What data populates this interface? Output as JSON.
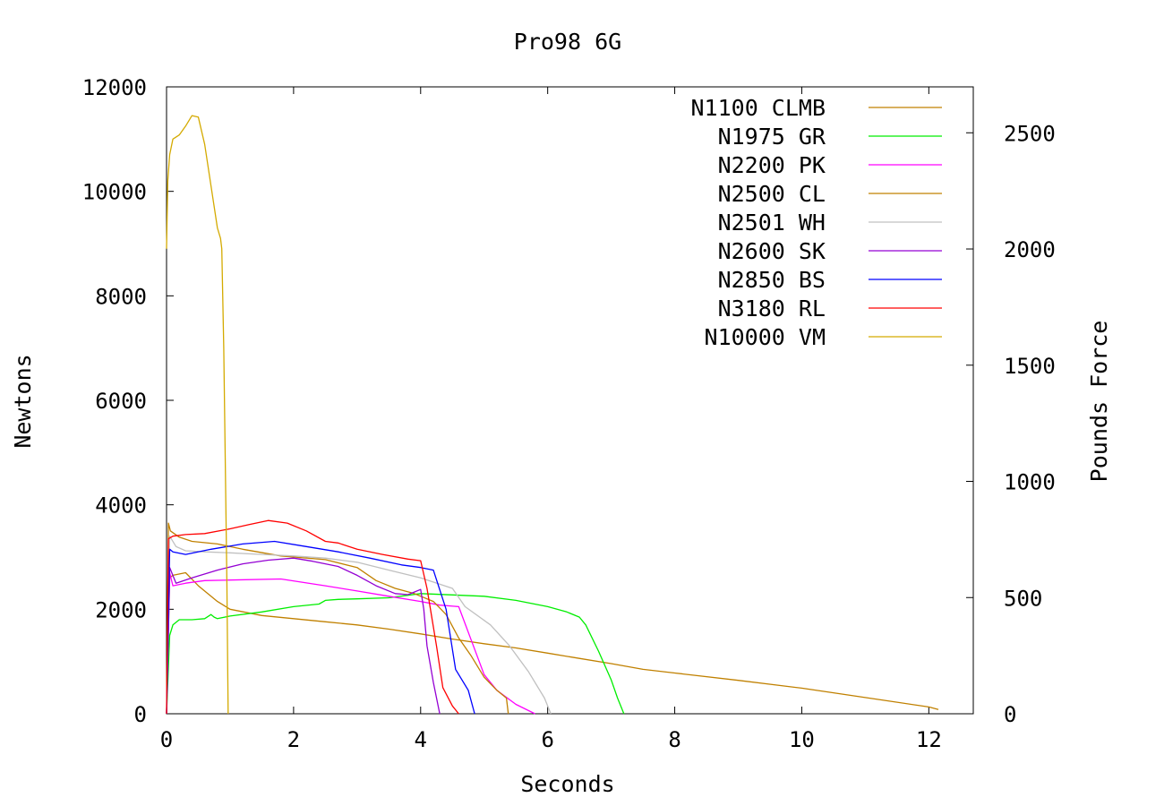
{
  "chart_data": {
    "type": "line",
    "title": "Pro98 6G",
    "xlabel": "Seconds",
    "ylabel": "Newtons",
    "y2label": "Pounds Force",
    "xlim": [
      0,
      12.7
    ],
    "ylim": [
      0,
      12000
    ],
    "y2lim": [
      0,
      2697.6
    ],
    "xticks": [
      0,
      2,
      4,
      6,
      8,
      10,
      12
    ],
    "yticks": [
      0,
      2000,
      4000,
      6000,
      8000,
      10000,
      12000
    ],
    "y2ticks": [
      0,
      500,
      1000,
      1500,
      2000,
      2500
    ],
    "grid": false,
    "legend_position": "top-right",
    "series": [
      {
        "name": "N1100 CLMB",
        "color": "#c08000",
        "x": [
          0,
          0.05,
          0.1,
          0.3,
          0.5,
          0.8,
          1.0,
          1.5,
          2.0,
          2.5,
          3.0,
          3.5,
          4.0,
          4.5,
          5.0,
          5.5,
          6.0,
          6.5,
          7.0,
          7.5,
          8.0,
          9.0,
          10.0,
          11.0,
          12.0,
          12.15
        ],
        "y": [
          0,
          2600,
          2650,
          2700,
          2450,
          2150,
          2000,
          1880,
          1820,
          1760,
          1700,
          1620,
          1530,
          1430,
          1340,
          1260,
          1160,
          1060,
          960,
          850,
          780,
          640,
          490,
          310,
          130,
          80
        ]
      },
      {
        "name": "N1975 GR",
        "color": "#00ee00",
        "x": [
          0,
          0.05,
          0.1,
          0.2,
          0.4,
          0.6,
          0.7,
          0.75,
          0.8,
          1.0,
          1.5,
          2.0,
          2.4,
          2.5,
          2.7,
          3.0,
          3.5,
          4.0,
          5.0,
          5.5,
          6.0,
          6.3,
          6.5,
          6.6,
          6.8,
          7.0,
          7.1,
          7.2
        ],
        "y": [
          0,
          1500,
          1700,
          1800,
          1800,
          1820,
          1900,
          1850,
          1820,
          1870,
          1950,
          2050,
          2100,
          2170,
          2190,
          2200,
          2220,
          2300,
          2250,
          2170,
          2050,
          1950,
          1850,
          1700,
          1200,
          650,
          300,
          0
        ]
      },
      {
        "name": "N2200 PK",
        "color": "#ff00ff",
        "x": [
          0,
          0.05,
          0.1,
          0.3,
          0.6,
          1.0,
          1.8,
          2.5,
          3.0,
          3.5,
          4.0,
          4.3,
          4.6,
          4.8,
          5.0,
          5.2,
          5.5,
          5.8
        ],
        "y": [
          0,
          2700,
          2450,
          2500,
          2550,
          2560,
          2580,
          2450,
          2350,
          2250,
          2150,
          2080,
          2050,
          1400,
          750,
          450,
          180,
          0
        ]
      },
      {
        "name": "N2500 CL",
        "color": "#c08000",
        "x": [
          0,
          0.03,
          0.06,
          0.2,
          0.4,
          0.8,
          1.2,
          1.8,
          2.5,
          3.0,
          3.3,
          3.6,
          3.9,
          4.2,
          4.4,
          4.6,
          4.8,
          5.0,
          5.2,
          5.35,
          5.38
        ],
        "y": [
          0,
          3650,
          3500,
          3380,
          3300,
          3250,
          3150,
          3020,
          2950,
          2800,
          2550,
          2400,
          2300,
          2150,
          1900,
          1450,
          1100,
          700,
          450,
          300,
          0
        ]
      },
      {
        "name": "N2501 WH",
        "color": "#c0c0c0",
        "x": [
          0,
          0.05,
          0.15,
          0.3,
          0.6,
          1.0,
          1.5,
          2.0,
          2.5,
          3.0,
          3.5,
          4.0,
          4.5,
          4.7,
          5.1,
          5.4,
          5.7,
          5.95,
          6.05
        ],
        "y": [
          0,
          3400,
          3200,
          3120,
          3100,
          3080,
          3050,
          3020,
          2980,
          2900,
          2750,
          2600,
          2400,
          2050,
          1700,
          1300,
          800,
          300,
          0
        ]
      },
      {
        "name": "N2600 SK",
        "color": "#9400d3",
        "x": [
          0,
          0.05,
          0.15,
          0.4,
          0.8,
          1.2,
          1.6,
          2.0,
          2.3,
          2.7,
          3.0,
          3.3,
          3.6,
          3.8,
          3.9,
          4.0,
          4.05,
          4.1,
          4.2,
          4.3
        ],
        "y": [
          0,
          2800,
          2500,
          2600,
          2750,
          2870,
          2940,
          2980,
          2920,
          2820,
          2650,
          2450,
          2300,
          2280,
          2330,
          2380,
          2000,
          1300,
          600,
          0
        ]
      },
      {
        "name": "N2850 BS",
        "color": "#0000ff",
        "x": [
          0,
          0.05,
          0.1,
          0.3,
          0.7,
          1.2,
          1.7,
          2.2,
          2.7,
          3.2,
          3.7,
          4.0,
          4.2,
          4.4,
          4.55,
          4.75,
          4.85
        ],
        "y": [
          0,
          3150,
          3100,
          3050,
          3150,
          3250,
          3300,
          3200,
          3100,
          2980,
          2850,
          2800,
          2750,
          2000,
          850,
          450,
          0
        ]
      },
      {
        "name": "N3180 RL",
        "color": "#ff0000",
        "x": [
          0,
          0.03,
          0.1,
          0.3,
          0.6,
          1.0,
          1.3,
          1.6,
          1.9,
          2.2,
          2.5,
          2.7,
          3.0,
          3.4,
          3.8,
          4.0,
          4.1,
          4.25,
          4.35,
          4.5,
          4.6
        ],
        "y": [
          0,
          3350,
          3400,
          3430,
          3450,
          3540,
          3620,
          3700,
          3650,
          3500,
          3300,
          3270,
          3150,
          3050,
          2960,
          2930,
          2400,
          1300,
          500,
          150,
          0
        ]
      },
      {
        "name": "N10000 VM",
        "color": "#d4aa00",
        "x": [
          0,
          0.02,
          0.05,
          0.1,
          0.2,
          0.3,
          0.4,
          0.5,
          0.6,
          0.7,
          0.8,
          0.85,
          0.87,
          0.9,
          0.95,
          0.97
        ],
        "y": [
          8900,
          10200,
          10700,
          11000,
          11080,
          11250,
          11450,
          11420,
          10900,
          10100,
          9300,
          9100,
          8900,
          7000,
          2500,
          0
        ]
      }
    ]
  }
}
